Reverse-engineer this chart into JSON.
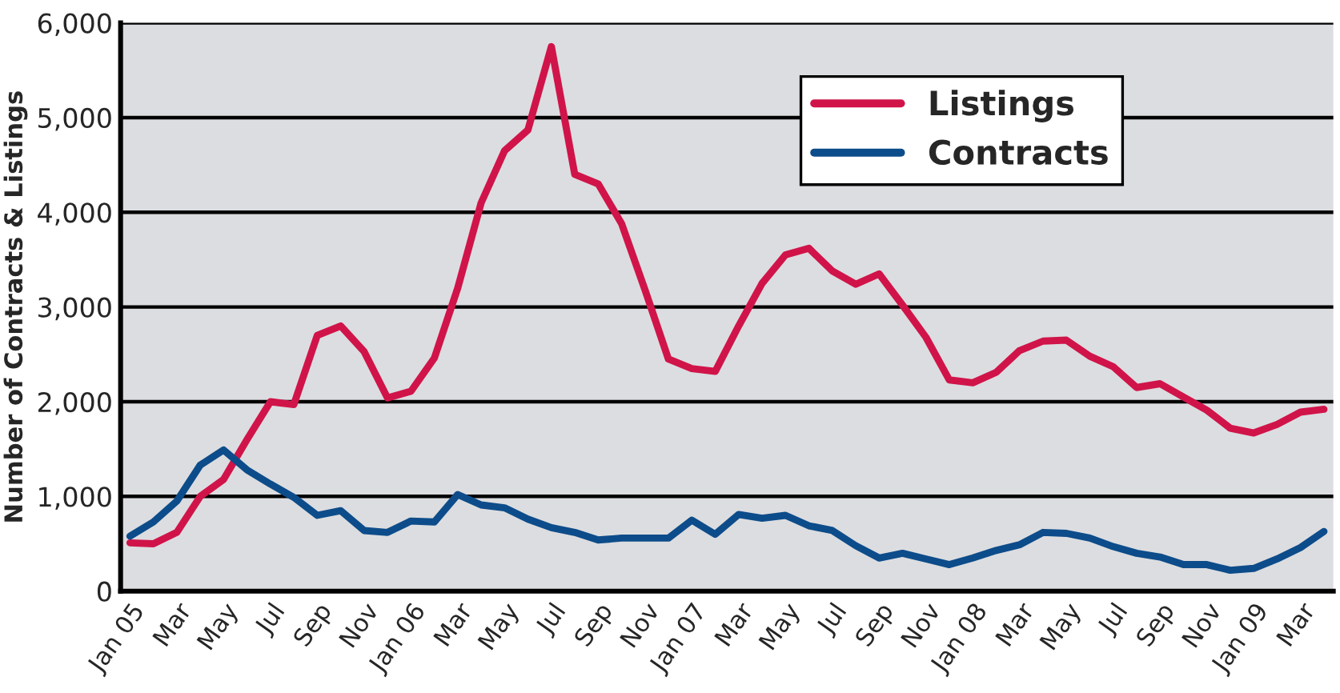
{
  "chart_data": {
    "type": "line",
    "ylabel": "Number of Contracts & Listings",
    "categories": [
      "Jan 05",
      null,
      "Mar",
      null,
      "May",
      null,
      "Jul",
      null,
      "Sep",
      null,
      "Nov",
      null,
      "Jan 06",
      null,
      "Mar",
      null,
      "May",
      null,
      "Jul",
      null,
      "Sep",
      null,
      "Nov",
      null,
      "Jan 07",
      null,
      "Mar",
      null,
      "May",
      null,
      "Jul",
      null,
      "Sep",
      null,
      "Nov",
      null,
      "Jan 08",
      null,
      "Mar",
      null,
      "May",
      null,
      "Jul",
      null,
      "Sep",
      null,
      "Nov",
      null,
      "Jan 09",
      null,
      "Mar",
      null
    ],
    "series": [
      {
        "name": "Listings",
        "color": "#d0144a",
        "values": [
          510,
          500,
          620,
          1000,
          1180,
          1600,
          2000,
          1970,
          2700,
          2800,
          2530,
          2040,
          2110,
          2460,
          3200,
          4100,
          4650,
          4870,
          5750,
          4400,
          4300,
          3880,
          3180,
          2450,
          2350,
          2320,
          2800,
          3250,
          3550,
          3620,
          3380,
          3240,
          3350,
          3020,
          2680,
          2230,
          2200,
          2310,
          2540,
          2640,
          2650,
          2480,
          2370,
          2150,
          2190,
          2050,
          1910,
          1720,
          1670,
          1760,
          1890,
          1920
        ]
      },
      {
        "name": "Contracts",
        "color": "#0d4c8a",
        "values": [
          580,
          730,
          950,
          1330,
          1490,
          1280,
          1130,
          990,
          800,
          850,
          640,
          620,
          740,
          730,
          1020,
          910,
          880,
          760,
          670,
          620,
          540,
          560,
          560,
          560,
          750,
          600,
          810,
          770,
          800,
          690,
          640,
          480,
          350,
          400,
          340,
          280,
          350,
          430,
          490,
          620,
          610,
          560,
          470,
          400,
          360,
          280,
          280,
          220,
          240,
          340,
          460,
          630
        ]
      }
    ],
    "ylim": [
      0,
      6000
    ],
    "yticks": [
      0,
      {
        "value": 1000,
        "label": "1,000"
      },
      {
        "value": 2000,
        "label": "2,000"
      },
      {
        "value": 3000,
        "label": "3,000"
      },
      {
        "value": 4000,
        "label": "4,000"
      },
      {
        "value": 5000,
        "label": "5,000"
      },
      {
        "value": 6000,
        "label": "6,000"
      }
    ],
    "grid": "y",
    "legend": "top right",
    "marker": "none",
    "line_style": "solid"
  }
}
